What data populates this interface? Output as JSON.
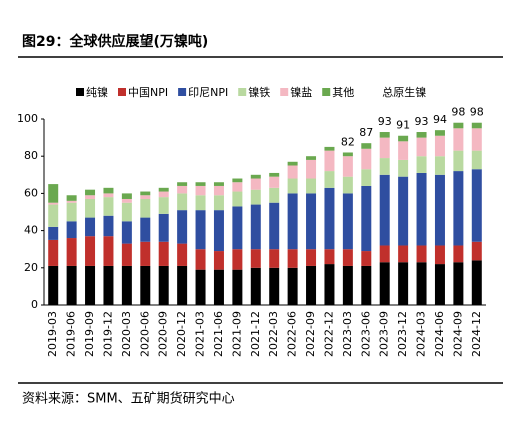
{
  "chart_data": {
    "type": "stacked_bar",
    "title": "图29：全球供应展望(万镍吨)",
    "source": "资料来源：SMM、五矿期货研究中心",
    "categories": [
      "2019-03",
      "2019-06",
      "2019-09",
      "2019-12",
      "2020-03",
      "2020-06",
      "2020-09",
      "2020-12",
      "2021-03",
      "2021-06",
      "2021-09",
      "2021-12",
      "2022-03",
      "2022-06",
      "2022-09",
      "2022-12",
      "2023-03",
      "2023-06",
      "2023-09",
      "2023-12",
      "2024-03",
      "2024-06",
      "2024-09",
      "2024-12"
    ],
    "series": [
      {
        "name": "纯镍",
        "color": "#000000",
        "values": [
          21,
          21,
          21,
          21,
          21,
          21,
          21,
          21,
          19,
          19,
          19,
          20,
          20,
          20,
          21,
          22,
          21,
          21,
          23,
          23,
          23,
          22,
          23,
          24
        ]
      },
      {
        "name": "中国NPI",
        "color": "#c0302c",
        "values": [
          14,
          15,
          16,
          16,
          12,
          13,
          13,
          12,
          11,
          10,
          11,
          10,
          10,
          10,
          9,
          8,
          9,
          8,
          9,
          9,
          9,
          10,
          9,
          10
        ]
      },
      {
        "name": "印尼NPI",
        "color": "#2f4ea0",
        "values": [
          7,
          9,
          10,
          11,
          12,
          13,
          15,
          18,
          21,
          22,
          23,
          24,
          25,
          30,
          30,
          33,
          30,
          35,
          38,
          37,
          39,
          38,
          40,
          39
        ]
      },
      {
        "name": "镍铁",
        "color": "#b9d9a0",
        "values": [
          12,
          10,
          10,
          10,
          10,
          10,
          9,
          9,
          8,
          8,
          8,
          8,
          8,
          8,
          8,
          9,
          9,
          9,
          9,
          9,
          9,
          10,
          11,
          10
        ]
      },
      {
        "name": "镍盐",
        "color": "#f4b8c2",
        "values": [
          1,
          1,
          2,
          2,
          2,
          2,
          3,
          4,
          5,
          5,
          5,
          6,
          6,
          7,
          10,
          11,
          11,
          11,
          11,
          10,
          10,
          11,
          12,
          12
        ]
      },
      {
        "name": "其他",
        "color": "#6aa84f",
        "values": [
          10,
          3,
          3,
          3,
          3,
          2,
          2,
          2,
          2,
          2,
          2,
          2,
          2,
          2,
          2,
          2,
          2,
          3,
          3,
          3,
          3,
          3,
          3,
          3
        ]
      }
    ],
    "total": {
      "name": "总原生镍",
      "values": [
        null,
        null,
        null,
        null,
        null,
        null,
        null,
        null,
        null,
        null,
        null,
        null,
        null,
        null,
        null,
        null,
        82,
        87,
        93,
        91,
        93,
        94,
        98,
        98
      ]
    },
    "ylim": [
      0,
      100
    ],
    "yticks": [
      0,
      20,
      40,
      60,
      80,
      100
    ],
    "grid": false
  }
}
